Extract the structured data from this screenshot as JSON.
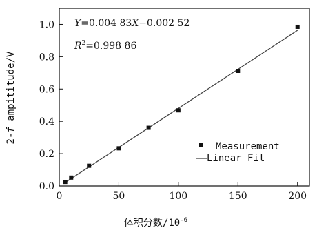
{
  "chart_data": {
    "type": "scatter",
    "xlabel": "体积分数/10",
    "xlabel_exponent": "-6",
    "ylabel_prefix": "2-",
    "ylabel_italic": "f",
    "ylabel_suffix": " ampititude/V",
    "xlim": [
      0,
      210
    ],
    "ylim": [
      0,
      1.1
    ],
    "xticks": [
      0,
      50,
      100,
      150,
      200
    ],
    "yticks": [
      0.0,
      0.2,
      0.4,
      0.6,
      0.8,
      1.0
    ],
    "xtick_labels": [
      "0",
      "50",
      "100",
      "150",
      "200"
    ],
    "ytick_labels": [
      "0.0",
      "0.2",
      "0.4",
      "0.6",
      "0.8",
      "1.0"
    ],
    "grid": false,
    "legend_position": "bottom-right",
    "series": [
      {
        "name": "Measurement",
        "kind": "scatter",
        "marker": "square",
        "x": [
          5,
          10,
          25,
          50,
          75,
          100,
          150,
          200
        ],
        "y": [
          0.025,
          0.052,
          0.125,
          0.233,
          0.36,
          0.468,
          0.712,
          0.985
        ]
      },
      {
        "name": "Linear Fit",
        "kind": "line",
        "slope": 0.00483,
        "intercept": -0.00252,
        "x_range": [
          5,
          200
        ]
      }
    ],
    "annotations": {
      "equation": {
        "y_var": "Y",
        "eq_part1": "=0.004 83",
        "x_var": "X",
        "eq_part2": "−0.002 52"
      },
      "r_squared": {
        "r_var": "R",
        "sup": "2",
        "value": "=0.998 86"
      }
    }
  }
}
